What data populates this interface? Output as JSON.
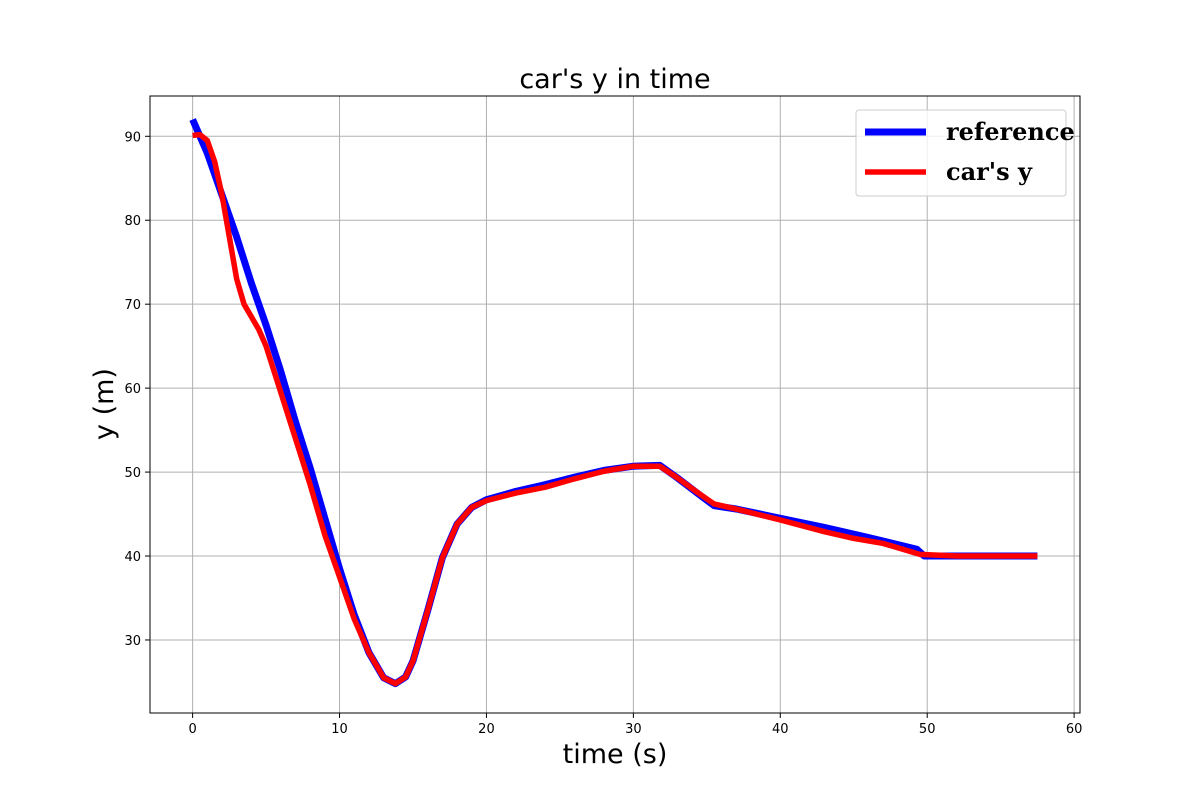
{
  "chart_data": {
    "type": "line",
    "title": "car's y in time",
    "xlabel": "time (s)",
    "ylabel": "y (m)",
    "xlim": [
      -2.9,
      60.4
    ],
    "ylim": [
      21.3,
      94.8
    ],
    "xticks": [
      0,
      10,
      20,
      30,
      40,
      50,
      60
    ],
    "yticks": [
      30,
      40,
      50,
      60,
      70,
      80,
      90
    ],
    "grid": true,
    "legend_position": "top-right",
    "series": [
      {
        "name": "reference",
        "color": "#0000ff",
        "x": [
          0,
          1,
          2,
          3,
          4,
          5,
          6,
          7,
          8,
          9,
          10,
          11,
          12,
          13,
          13.8,
          14.5,
          15,
          16,
          17,
          18,
          19,
          20,
          22,
          24,
          26,
          28,
          30,
          31.8,
          33,
          34.5,
          35.5,
          37,
          40,
          43,
          46,
          49.3,
          49.8,
          52,
          55,
          57.5
        ],
        "y": [
          92,
          88,
          83,
          78,
          72.5,
          67.5,
          62,
          56,
          50.5,
          44.5,
          38.5,
          33,
          28.5,
          25.5,
          24.8,
          25.6,
          27.5,
          33.5,
          39.8,
          43.8,
          45.8,
          46.7,
          47.7,
          48.5,
          49.4,
          50.2,
          50.7,
          50.8,
          49.3,
          47.3,
          46.0,
          45.6,
          44.5,
          43.4,
          42.2,
          40.8,
          40.0,
          40.0,
          40.0,
          40.0
        ]
      },
      {
        "name": "car's y",
        "color": "#ff0000",
        "x": [
          0,
          0.5,
          1,
          1.5,
          2,
          2.5,
          3,
          3.5,
          4,
          4.5,
          5,
          6,
          7,
          8,
          9,
          10,
          11,
          12,
          13,
          13.8,
          14.5,
          15,
          16,
          17,
          18,
          19,
          20,
          22,
          24,
          26,
          28,
          30,
          31.8,
          33,
          34.5,
          35.5,
          37,
          40,
          43,
          45,
          47,
          49.5,
          52,
          55,
          57.5
        ],
        "y": [
          90.1,
          90.2,
          89.5,
          87,
          83,
          78,
          73,
          70,
          68.5,
          67,
          65,
          59.5,
          54,
          48.5,
          42.5,
          37.5,
          32.5,
          28.5,
          25.5,
          24.8,
          25.6,
          27.5,
          33.5,
          39.8,
          43.8,
          45.8,
          46.6,
          47.5,
          48.2,
          49.2,
          50.1,
          50.7,
          50.7,
          49.3,
          47.4,
          46.2,
          45.6,
          44.3,
          42.9,
          42.1,
          41.5,
          40.2,
          40.0,
          40.0,
          40.0
        ]
      }
    ]
  }
}
